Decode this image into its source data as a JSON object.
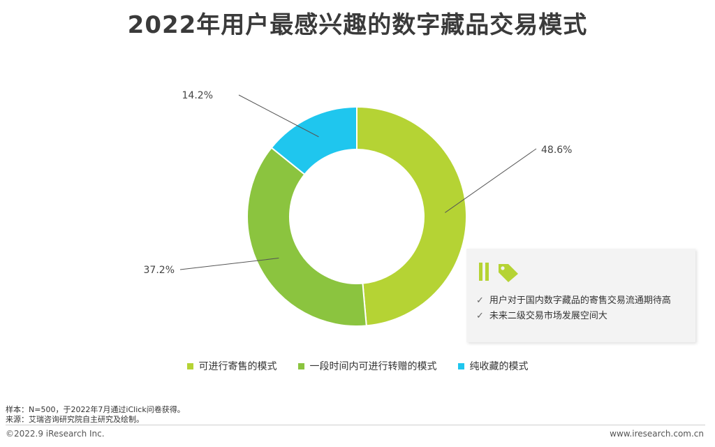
{
  "title": "2022年用户最感兴趣的数字藏品交易模式",
  "colors": {
    "resale": "#b5d334",
    "transfer": "#8bc43f",
    "collect": "#1fc6ee",
    "leader_line": "#555555"
  },
  "chart_data": {
    "type": "pie",
    "donut": true,
    "title": "2022年用户最感兴趣的数字藏品交易模式",
    "legend_position": "bottom",
    "slices": [
      {
        "name": "可进行寄售的模式",
        "value": 48.6,
        "label": "48.6%",
        "color": "#b5d334"
      },
      {
        "name": "一段时间内可进行转赠的模式",
        "value": 37.2,
        "label": "37.2%",
        "color": "#8bc43f"
      },
      {
        "name": "纯收藏的模式",
        "value": 14.2,
        "label": "14.2%",
        "color": "#1fc6ee"
      }
    ]
  },
  "notes": {
    "icon_names": [
      "quote-bars-icon",
      "tag-icon"
    ],
    "items": [
      "用户对于国内数字藏品的寄售交易流通期待高",
      "未来二级交易市场发展空间大"
    ]
  },
  "footnotes": {
    "sample": "样本：N=500，于2022年7月通过iClick问卷获得。",
    "source": "来源：艾瑞咨询研究院自主研究及绘制。"
  },
  "footer": {
    "copyright": "©2022.9 iResearch Inc.",
    "website": "www.iresearch.com.cn"
  }
}
